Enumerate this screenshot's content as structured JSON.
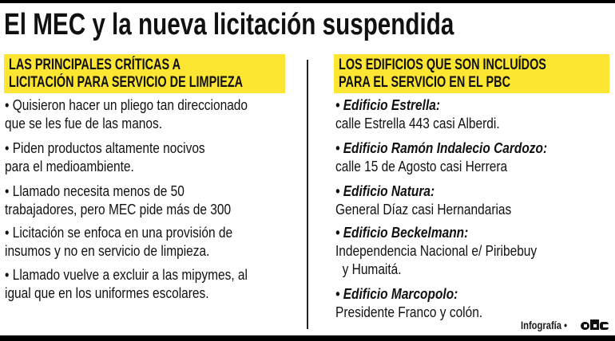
{
  "title": "El MEC y la nueva licitación suspendida",
  "left": {
    "header": [
      "LAS PRINCIPALES CRÍTICAS A",
      "LICITACIÓN PARA SERVICIO DE LIMPIEZA"
    ],
    "items": [
      [
        "• Quisieron hacer un pliego tan direccionado",
        "que se les fue de las manos."
      ],
      [
        "• Piden productos altamente nocivos",
        "para el medioambiente."
      ],
      [
        "• Llamado necesita menos de 50",
        "trabajadores, pero MEC pide más de 300"
      ],
      [
        "• Licitación se enfoca en una provisión de",
        "insumos y no en servicio de limpieza."
      ],
      [
        "• Llamado vuelve a excluir a las mipymes, al",
        "igual que en los uniformes escolares."
      ]
    ]
  },
  "right": {
    "header": [
      "LOS EDIFICIOS QUE SON INCLUÍDOS",
      "PARA EL SERVICIO EN EL PBC"
    ],
    "items": [
      {
        "name": "• Edificio Estrella:",
        "address": [
          "calle Estrella 443 casi Alberdi."
        ]
      },
      {
        "name": "• Edificio Ramón Indalecio Cardozo:",
        "address": [
          "calle 15 de Agosto casi Herrera"
        ]
      },
      {
        "name": "• Edificio Natura:",
        "address": [
          "General Díaz casi Hernandarias"
        ]
      },
      {
        "name": "• Edificio Beckelmann:",
        "address": [
          "Independencia Nacional e/ Piribebuy",
          "  y Humaitá."
        ]
      },
      {
        "name": "• Edificio Marcopolo:",
        "address": [
          "Presidente Franco y colón."
        ]
      }
    ]
  },
  "credit": "Infografía •",
  "logo_text": "abc",
  "colors": {
    "highlight": "#fce631",
    "bars": "#000000"
  }
}
